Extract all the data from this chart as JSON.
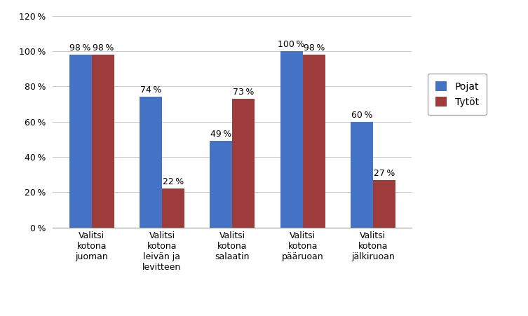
{
  "categories": [
    "Valitsi\nkotona\njuoman",
    "Valitsi\nkotona\nleivän ja\nlevitteen",
    "Valitsi\nkotona\nsalaatin",
    "Valitsi\nkotona\npääruoan",
    "Valitsi\nkotona\njälkiruoan"
  ],
  "pojat": [
    98,
    74,
    49,
    100,
    60
  ],
  "tytot": [
    98,
    22,
    73,
    98,
    27
  ],
  "pojat_label": "Pojat",
  "tytot_label": "Tytöt",
  "pojat_color": "#4472C4",
  "tytot_color": "#9E3B3B",
  "ylim": [
    0,
    120
  ],
  "yticks": [
    0,
    20,
    40,
    60,
    80,
    100,
    120
  ],
  "bar_width": 0.32,
  "label_fontsize": 9,
  "tick_fontsize": 9,
  "legend_fontsize": 10,
  "background_color": "#FFFFFF"
}
